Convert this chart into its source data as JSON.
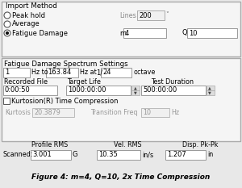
{
  "title": "Figure 4: m=4, Q=10, 2x Time Compression",
  "bg_color": "#e8e8e8",
  "panel_bg": "#ffffff",
  "section1_title": "Import Method",
  "radio_options": [
    "Peak hold",
    "Average",
    "Fatigue Damage"
  ],
  "radio_selected": 2,
  "lines_label": "Lines",
  "lines_value": "200",
  "m_label": "m",
  "m_value": "4",
  "q_label": "Q",
  "q_value": "10",
  "section2_title": "Fatigue Damage Spectrum Settings",
  "freq_start": "1",
  "freq_end": "163.84",
  "octave_frac": "24",
  "recorded_file_label": "Recorded File",
  "recorded_file_value": "0:00:50",
  "target_life_label": "Target Life",
  "target_life_value": "1000:00:00",
  "test_duration_label": "Test Duration",
  "test_duration_value": "500:00:00",
  "kurtosis_checkbox": "Kurtosion(R) Time Compression",
  "kurtosis_label": "Kurtosis",
  "kurtosis_value": "20.3879",
  "trans_freq_label": "Transition Freq",
  "trans_freq_value": "10",
  "hz_label": "Hz",
  "profile_rms_label": "Profile RMS",
  "vel_rms_label": "Vel. RMS",
  "disp_pk_label": "Disp. Pk-Pk",
  "scanned_label": "Scanned:",
  "scanned_value": "3.001",
  "scanned_unit": "G",
  "vel_value": "10.35",
  "vel_unit": "in/s",
  "disp_value": "1.207",
  "disp_unit": "in"
}
